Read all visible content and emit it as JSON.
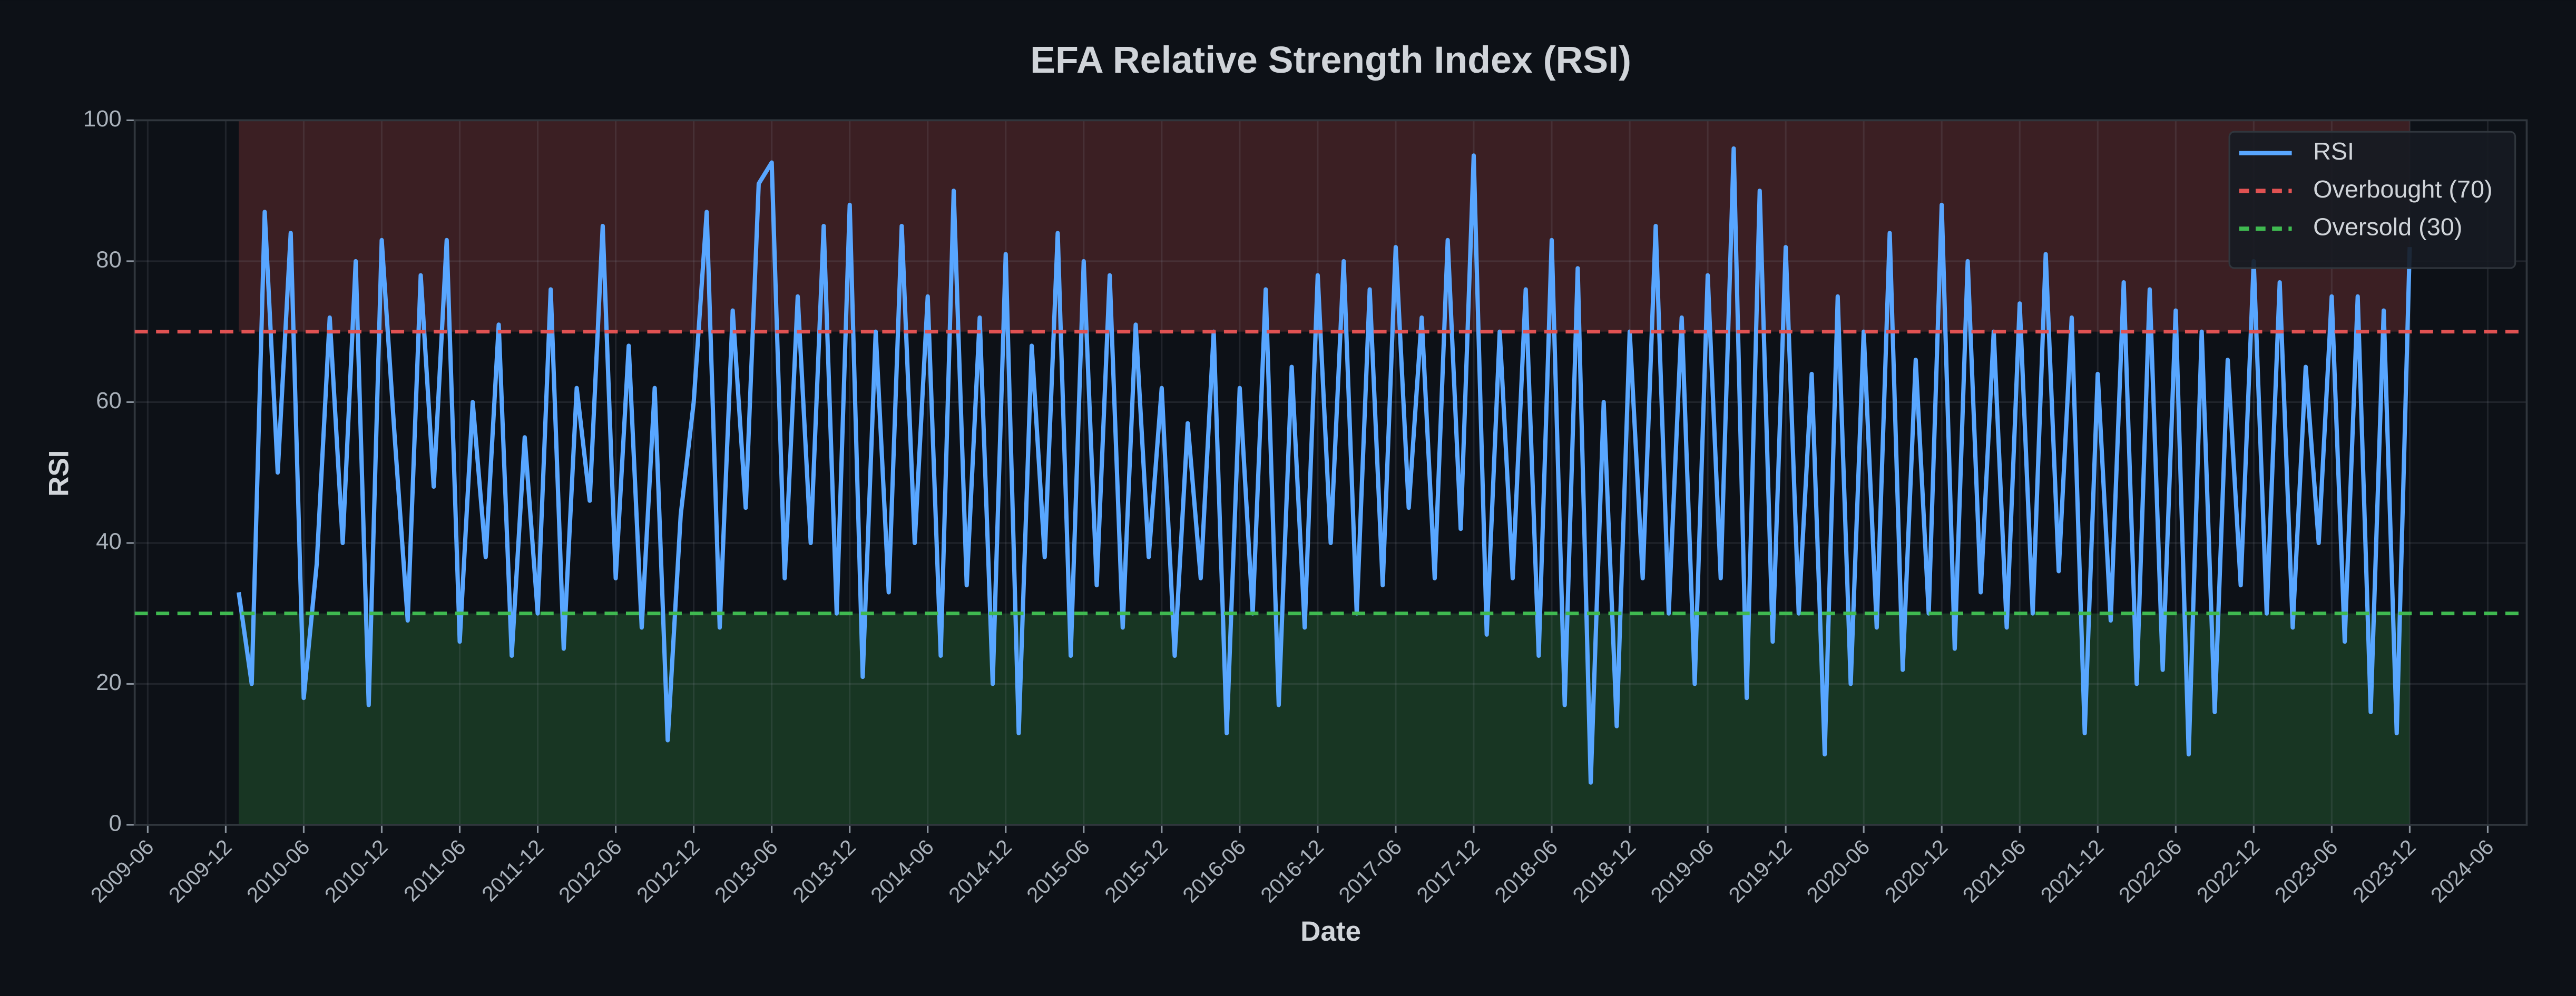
{
  "chart_data": {
    "type": "line",
    "title": "EFA Relative Strength Index (RSI)",
    "x_label": "Date",
    "y_label": "RSI",
    "x": [
      "2010-01",
      "2010-02",
      "2010-03",
      "2010-04",
      "2010-05",
      "2010-06",
      "2010-07",
      "2010-08",
      "2010-09",
      "2010-10",
      "2010-11",
      "2010-12",
      "2011-01",
      "2011-02",
      "2011-03",
      "2011-04",
      "2011-05",
      "2011-06",
      "2011-07",
      "2011-08",
      "2011-09",
      "2011-10",
      "2011-11",
      "2011-12",
      "2012-01",
      "2012-02",
      "2012-03",
      "2012-04",
      "2012-05",
      "2012-06",
      "2012-07",
      "2012-08",
      "2012-09",
      "2012-10",
      "2012-11",
      "2012-12",
      "2013-01",
      "2013-02",
      "2013-03",
      "2013-04",
      "2013-05",
      "2013-06",
      "2013-07",
      "2013-08",
      "2013-09",
      "2013-10",
      "2013-11",
      "2013-12",
      "2014-01",
      "2014-02",
      "2014-03",
      "2014-04",
      "2014-05",
      "2014-06",
      "2014-07",
      "2014-08",
      "2014-09",
      "2014-10",
      "2014-11",
      "2014-12",
      "2015-01",
      "2015-02",
      "2015-03",
      "2015-04",
      "2015-05",
      "2015-06",
      "2015-07",
      "2015-08",
      "2015-09",
      "2015-10",
      "2015-11",
      "2015-12",
      "2016-01",
      "2016-02",
      "2016-03",
      "2016-04",
      "2016-05",
      "2016-06",
      "2016-07",
      "2016-08",
      "2016-09",
      "2016-10",
      "2016-11",
      "2016-12",
      "2017-01",
      "2017-02",
      "2017-03",
      "2017-04",
      "2017-05",
      "2017-06",
      "2017-07",
      "2017-08",
      "2017-09",
      "2017-10",
      "2017-11",
      "2017-12",
      "2018-01",
      "2018-02",
      "2018-03",
      "2018-04",
      "2018-05",
      "2018-06",
      "2018-07",
      "2018-08",
      "2018-09",
      "2018-10",
      "2018-11",
      "2018-12",
      "2019-01",
      "2019-02",
      "2019-03",
      "2019-04",
      "2019-05",
      "2019-06",
      "2019-07",
      "2019-08",
      "2019-09",
      "2019-10",
      "2019-11",
      "2019-12",
      "2020-01",
      "2020-02",
      "2020-03",
      "2020-04",
      "2020-05",
      "2020-06",
      "2020-07",
      "2020-08",
      "2020-09",
      "2020-10",
      "2020-11",
      "2020-12",
      "2021-01",
      "2021-02",
      "2021-03",
      "2021-04",
      "2021-05",
      "2021-06",
      "2021-07",
      "2021-08",
      "2021-09",
      "2021-10",
      "2021-11",
      "2021-12",
      "2022-01",
      "2022-02",
      "2022-03",
      "2022-04",
      "2022-05",
      "2022-06",
      "2022-07",
      "2022-08",
      "2022-09",
      "2022-10",
      "2022-11",
      "2022-12",
      "2023-01",
      "2023-02",
      "2023-03",
      "2023-04",
      "2023-05",
      "2023-06",
      "2023-07",
      "2023-08",
      "2023-09",
      "2023-10",
      "2023-11",
      "2023-12"
    ],
    "series": [
      {
        "name": "RSI",
        "color": "#58a6ff",
        "values": [
          33,
          20,
          87,
          50,
          84,
          18,
          37,
          72,
          40,
          80,
          17,
          83,
          55,
          29,
          78,
          48,
          83,
          26,
          60,
          38,
          71,
          24,
          55,
          30,
          76,
          25,
          62,
          46,
          85,
          35,
          68,
          28,
          62,
          12,
          44,
          60,
          87,
          28,
          73,
          45,
          91,
          94,
          35,
          75,
          40,
          85,
          30,
          88,
          21,
          70,
          33,
          85,
          40,
          75,
          24,
          90,
          34,
          72,
          20,
          81,
          13,
          68,
          38,
          84,
          24,
          80,
          34,
          78,
          28,
          71,
          38,
          62,
          24,
          57,
          35,
          70,
          13,
          62,
          30,
          76,
          17,
          65,
          28,
          78,
          40,
          80,
          30,
          76,
          34,
          82,
          45,
          72,
          35,
          83,
          42,
          95,
          27,
          70,
          35,
          76,
          24,
          83,
          17,
          79,
          6,
          60,
          14,
          70,
          35,
          85,
          30,
          72,
          20,
          78,
          35,
          96,
          18,
          90,
          26,
          82,
          30,
          64,
          10,
          75,
          20,
          70,
          28,
          84,
          22,
          66,
          30,
          88,
          25,
          80,
          33,
          70,
          28,
          74,
          30,
          81,
          36,
          72,
          13,
          64,
          29,
          77,
          20,
          76,
          22,
          73,
          10,
          70,
          16,
          66,
          34,
          80,
          30,
          77,
          28,
          65,
          40,
          75,
          26,
          75,
          16,
          73,
          13,
          82
        ]
      }
    ],
    "reference_lines": [
      {
        "name": "Overbought (70)",
        "value": 70,
        "color": "#e05252"
      },
      {
        "name": "Oversold (30)",
        "value": 30,
        "color": "#3fb950"
      }
    ],
    "xlim": [
      "2009-05",
      "2024-09"
    ],
    "xticks": [
      "2009-06",
      "2009-12",
      "2010-06",
      "2010-12",
      "2011-06",
      "2011-12",
      "2012-06",
      "2012-12",
      "2013-06",
      "2013-12",
      "2014-06",
      "2014-12",
      "2015-06",
      "2015-12",
      "2016-06",
      "2016-12",
      "2017-06",
      "2017-12",
      "2018-06",
      "2018-12",
      "2019-06",
      "2019-12",
      "2020-06",
      "2020-12",
      "2021-06",
      "2021-12",
      "2022-06",
      "2022-12",
      "2023-06",
      "2023-12",
      "2024-06"
    ],
    "ylim": [
      0,
      100
    ],
    "yticks": [
      0,
      20,
      40,
      60,
      80,
      100
    ],
    "grid": true,
    "legend": "upper right"
  }
}
